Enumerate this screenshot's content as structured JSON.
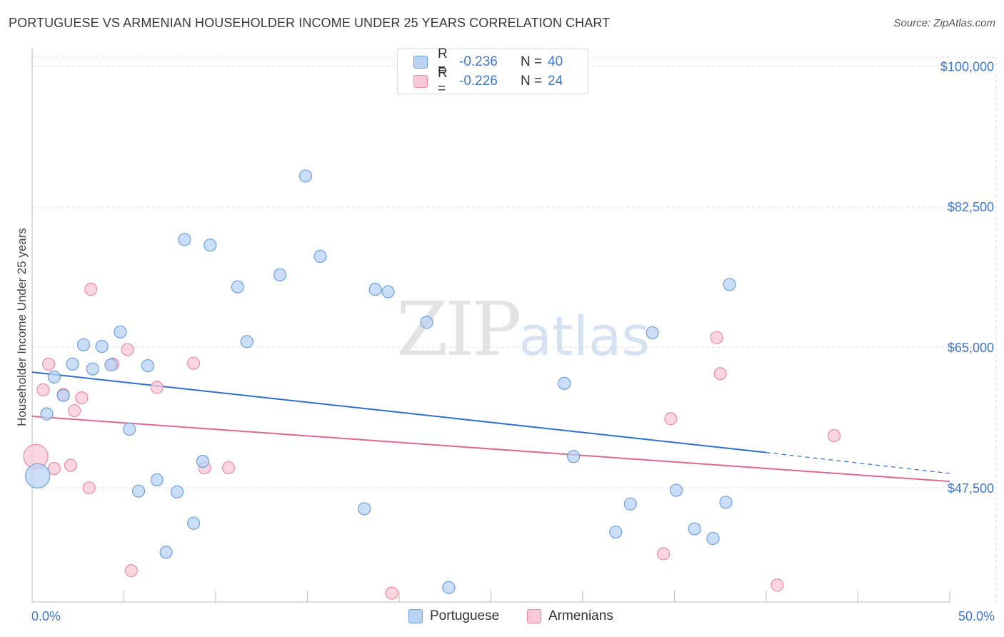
{
  "title": "PORTUGUESE VS ARMENIAN HOUSEHOLDER INCOME UNDER 25 YEARS CORRELATION CHART",
  "source": "Source: ZipAtlas.com",
  "watermark": {
    "zip": "ZIP",
    "atlas": "atlas"
  },
  "legend": {
    "r_label": "R =",
    "n_label": "N =",
    "rows": [
      {
        "r": "-0.236",
        "n": "40"
      },
      {
        "r": "-0.226",
        "n": "24"
      }
    ]
  },
  "colors": {
    "portuguese_fill": "#b9d3f5",
    "portuguese_stroke": "#6d9fdc",
    "portuguese_line": "#2f6fd0",
    "armenian_fill": "#f9c8d7",
    "armenian_stroke": "#e88aa7",
    "armenian_line": "#e06890",
    "tick_text": "#3e78c8",
    "grid": "#dcdcdc"
  },
  "chart_data": {
    "type": "scatter",
    "xlabel": "",
    "ylabel": "Householder Income Under 25 years",
    "xlim": [
      0,
      50
    ],
    "ylim": [
      33300,
      101800
    ],
    "x_tick_labels": [
      "0.0%",
      "50.0%"
    ],
    "y_ticks": [
      47500,
      65000,
      82500,
      100000
    ],
    "y_tick_labels": [
      "$47,500",
      "$65,000",
      "$82,500",
      "$100,000"
    ],
    "grid": true,
    "legend_position": "bottom",
    "series": [
      {
        "name": "Portuguese",
        "points": [
          [
            0.3,
            49000
          ],
          [
            0.8,
            56700
          ],
          [
            1.2,
            61300
          ],
          [
            1.7,
            59000
          ],
          [
            2.2,
            62900
          ],
          [
            2.8,
            65300
          ],
          [
            3.3,
            62300
          ],
          [
            3.8,
            65100
          ],
          [
            4.3,
            62800
          ],
          [
            4.8,
            66900
          ],
          [
            5.3,
            54800
          ],
          [
            5.8,
            47100
          ],
          [
            6.3,
            62700
          ],
          [
            6.8,
            48500
          ],
          [
            7.3,
            39500
          ],
          [
            7.9,
            47000
          ],
          [
            8.3,
            78400
          ],
          [
            8.8,
            43100
          ],
          [
            9.3,
            50800
          ],
          [
            9.7,
            77700
          ],
          [
            11.2,
            72500
          ],
          [
            11.7,
            65700
          ],
          [
            13.5,
            74000
          ],
          [
            14.9,
            86300
          ],
          [
            15.7,
            76300
          ],
          [
            18.1,
            44900
          ],
          [
            18.7,
            72200
          ],
          [
            19.4,
            71900
          ],
          [
            21.5,
            68100
          ],
          [
            22.7,
            35100
          ],
          [
            29.0,
            60500
          ],
          [
            29.5,
            51400
          ],
          [
            31.8,
            42000
          ],
          [
            32.6,
            45500
          ],
          [
            33.8,
            66800
          ],
          [
            35.1,
            47200
          ],
          [
            36.1,
            42400
          ],
          [
            37.1,
            41200
          ],
          [
            37.8,
            45700
          ],
          [
            38.0,
            72800
          ]
        ],
        "sizes": [
          1,
          1,
          1,
          1,
          1,
          1,
          1,
          1,
          1,
          1,
          1,
          1,
          1,
          1,
          1,
          1,
          1,
          1,
          1,
          1,
          1,
          1,
          1,
          1,
          1,
          1,
          1,
          1,
          1,
          1,
          1,
          1,
          1,
          1,
          1,
          1,
          1,
          1,
          1,
          1
        ],
        "large_point_index": 0,
        "trend": {
          "x": [
            0,
            40
          ],
          "y": [
            61900,
            51900
          ],
          "dashed_to": [
            50,
            49300
          ]
        }
      },
      {
        "name": "Armenians",
        "points": [
          [
            0.2,
            51400
          ],
          [
            0.6,
            59700
          ],
          [
            0.9,
            62900
          ],
          [
            1.2,
            49900
          ],
          [
            1.7,
            59100
          ],
          [
            2.1,
            50300
          ],
          [
            2.3,
            57100
          ],
          [
            2.7,
            58700
          ],
          [
            3.1,
            47500
          ],
          [
            3.2,
            72200
          ],
          [
            4.4,
            62900
          ],
          [
            5.2,
            64700
          ],
          [
            5.4,
            37200
          ],
          [
            6.8,
            60000
          ],
          [
            8.8,
            63000
          ],
          [
            9.4,
            50000
          ],
          [
            10.7,
            50000
          ],
          [
            19.6,
            34400
          ],
          [
            34.4,
            39300
          ],
          [
            34.8,
            56100
          ],
          [
            37.3,
            66200
          ],
          [
            37.5,
            61700
          ],
          [
            40.6,
            35400
          ],
          [
            43.7,
            54000
          ]
        ],
        "sizes": [
          1,
          1,
          1,
          1,
          1,
          1,
          1,
          1,
          1,
          1,
          1,
          1,
          1,
          1,
          1,
          1,
          1,
          1,
          1,
          1,
          1,
          1,
          1,
          1
        ],
        "large_point_index": 0,
        "trend": {
          "x": [
            0,
            50
          ],
          "y": [
            56400,
            48300
          ]
        }
      }
    ]
  }
}
